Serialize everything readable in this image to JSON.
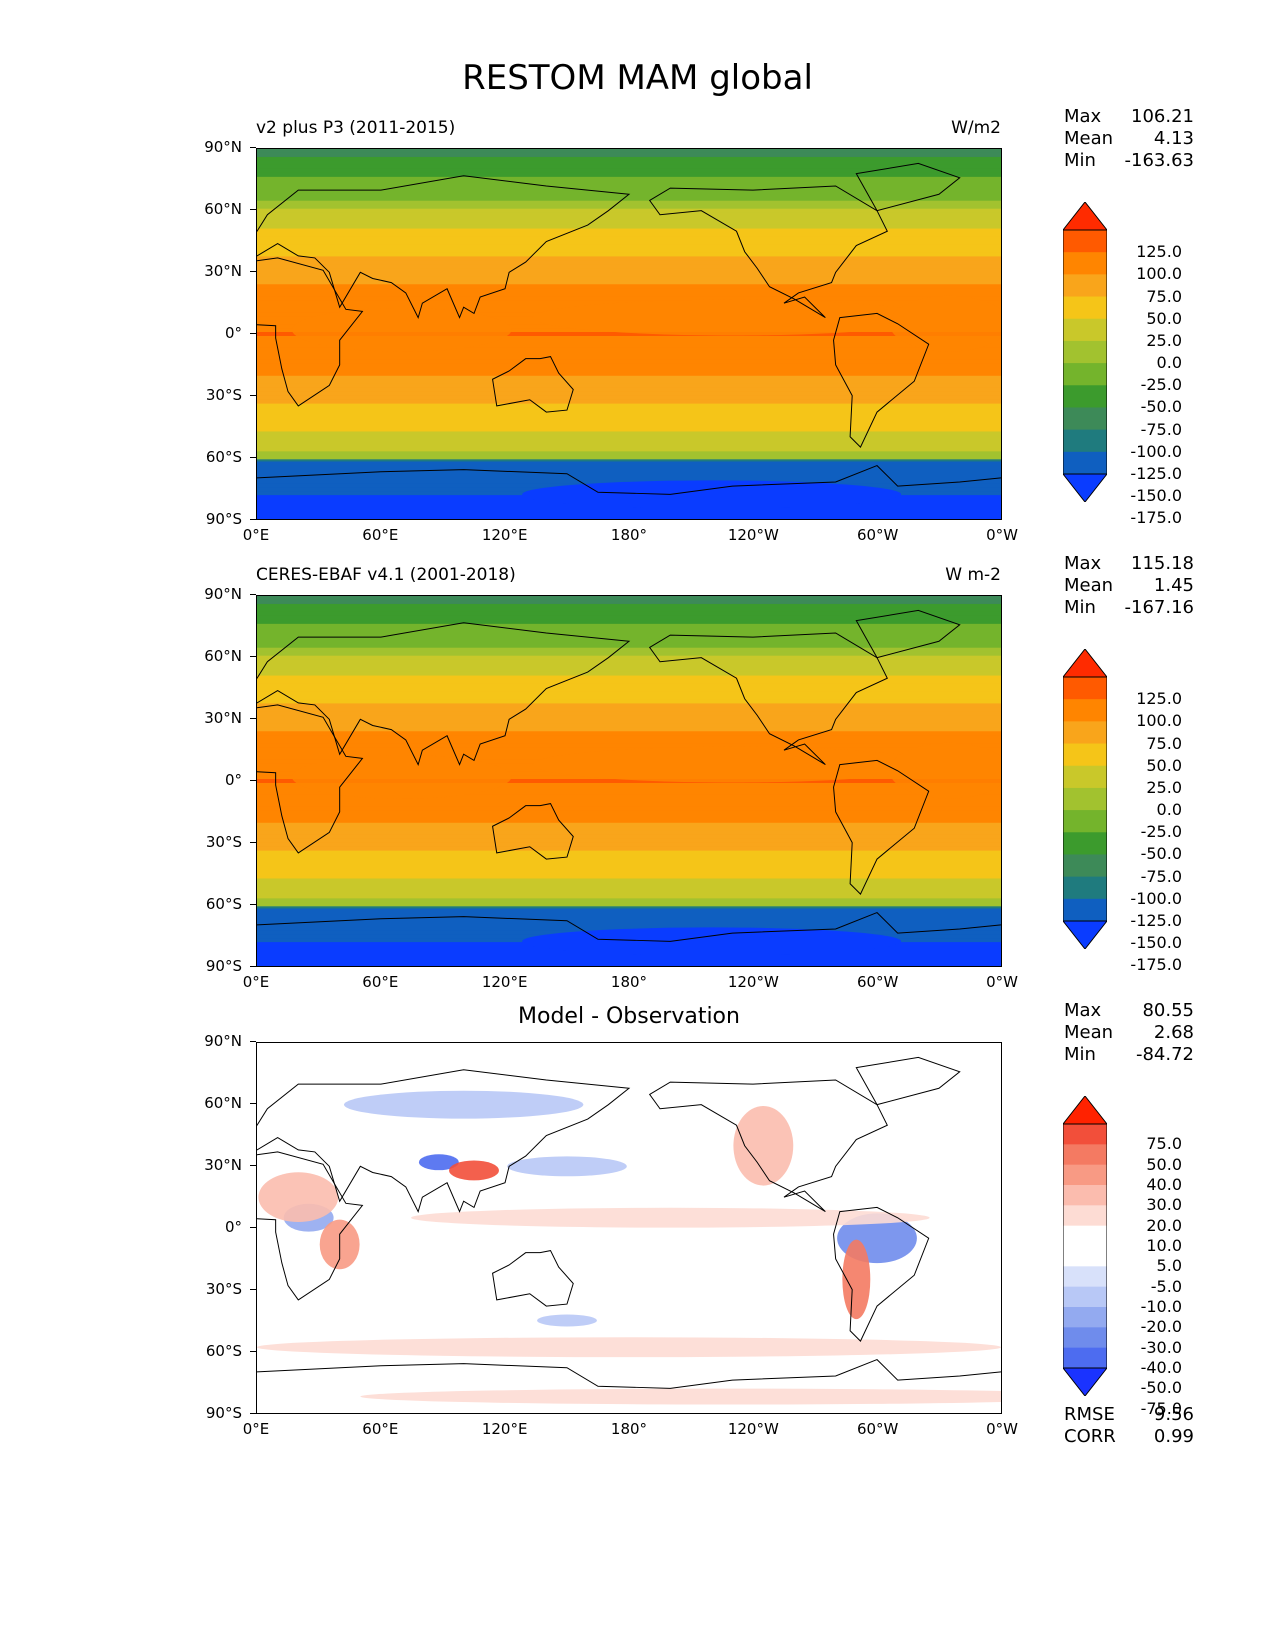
{
  "title": "RESTOM MAM global",
  "y_ticks": [
    "90°N",
    "60°N",
    "30°N",
    "0°",
    "30°S",
    "60°S",
    "90°S"
  ],
  "x_ticks": [
    "0°E",
    "60°E",
    "120°E",
    "180°",
    "120°W",
    "60°W",
    "0°W"
  ],
  "panels": [
    {
      "left_title": "v2 plus P3 (2011-2015)",
      "center_title": "",
      "units": "W/m2",
      "stats": {
        "max_label": "Max",
        "max": "106.21",
        "mean_label": "Mean",
        "mean": "4.13",
        "min_label": "Min",
        "min": "-163.63"
      },
      "colorbar_labels": [
        "125.0",
        "100.0",
        "75.0",
        "50.0",
        "25.0",
        "0.0",
        "-25.0",
        "-50.0",
        "-75.0",
        "-100.0",
        "-125.0",
        "-150.0",
        "-175.0"
      ],
      "colormap": "restom"
    },
    {
      "left_title": "CERES-EBAF v4.1 (2001-2018)",
      "center_title": "",
      "units": "W m-2",
      "stats": {
        "max_label": "Max",
        "max": "115.18",
        "mean_label": "Mean",
        "mean": "1.45",
        "min_label": "Min",
        "min": "-167.16"
      },
      "colorbar_labels": [
        "125.0",
        "100.0",
        "75.0",
        "50.0",
        "25.0",
        "0.0",
        "-25.0",
        "-50.0",
        "-75.0",
        "-100.0",
        "-125.0",
        "-150.0",
        "-175.0"
      ],
      "colormap": "restom"
    },
    {
      "left_title": "",
      "center_title": "Model - Observation",
      "units": "",
      "stats": {
        "max_label": "Max",
        "max": "80.55",
        "mean_label": "Mean",
        "mean": "2.68",
        "min_label": "Min",
        "min": "-84.72"
      },
      "colorbar_labels": [
        "75.0",
        "50.0",
        "40.0",
        "30.0",
        "20.0",
        "10.0",
        "5.0",
        "-5.0",
        "-10.0",
        "-20.0",
        "-30.0",
        "-40.0",
        "-50.0",
        "-75.0"
      ],
      "colormap": "diff",
      "metrics": {
        "rmse_label": "RMSE",
        "rmse": "9.56",
        "corr_label": "CORR",
        "corr": "0.99"
      }
    }
  ],
  "colors": {
    "restom": [
      "#ff2b00",
      "#ff5a00",
      "#ff8500",
      "#f9a51b",
      "#f5c518",
      "#c9c82a",
      "#a2c22f",
      "#74b42c",
      "#3c9b2d",
      "#3d8a58",
      "#1f7b7e",
      "#0f5fc0",
      "#0a3cff"
    ],
    "diff": [
      "#ff2200",
      "#f24f3a",
      "#f47a62",
      "#f89a84",
      "#fbbcae",
      "#fddcd4",
      "#ffffff",
      "#ffffff",
      "#d8e1fa",
      "#b8c8f6",
      "#93aaf0",
      "#6f8cec",
      "#4d6cf0",
      "#1a33ff"
    ]
  }
}
